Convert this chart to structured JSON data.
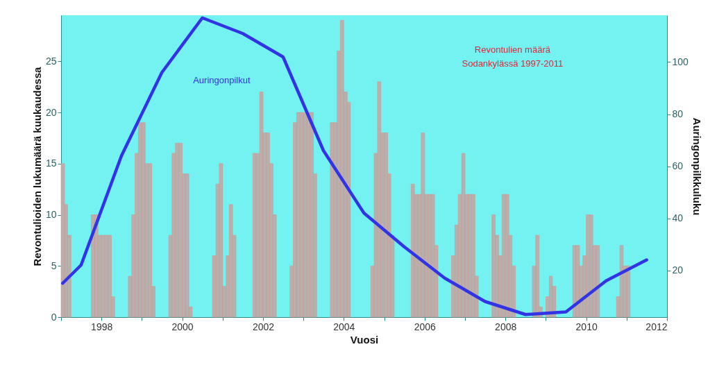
{
  "chart_data": {
    "type": "bar",
    "xlabel": "Vuosi",
    "ylabel": "Revontulioiden lukumäärä kuukaudessa",
    "y2label": "Auringonpilkkuluku",
    "annotations": [
      "Revontulien määrä\nSodankylässä 1997-2011"
    ],
    "xlim": [
      "1997",
      "2012"
    ],
    "xticks": [
      {
        "value": "1997",
        "label": null
      },
      "1998",
      {
        "value": "1999",
        "label": null
      },
      "2000",
      {
        "value": "2001",
        "label": null
      },
      "2002",
      {
        "value": "2003",
        "label": null
      },
      "2004",
      {
        "value": "2005",
        "label": null
      },
      "2006",
      {
        "value": "2007",
        "label": null
      },
      "2008",
      {
        "value": "2009",
        "label": null
      },
      "2010",
      {
        "value": "2011",
        "label": null
      },
      "2012"
    ],
    "ylim": [
      0,
      29.5
    ],
    "yticks": [
      0,
      5,
      10,
      15,
      20,
      25
    ],
    "y2lim": [
      2,
      118
    ],
    "y2ticks": [
      20,
      40,
      60,
      80,
      100
    ],
    "grid": false,
    "series": [
      {
        "color": "#b8b0ae",
        "x": [
          "1997-01",
          "1997-02",
          "1997-03",
          "1997-10",
          "1997-11",
          "1997-12",
          "1998-01",
          "1998-02",
          "1998-03",
          "1998-04",
          "1998-09",
          "1998-10",
          "1998-11",
          "1998-12",
          "1999-01",
          "1999-02",
          "1999-03",
          "1999-04",
          "1999-09",
          "1999-10",
          "1999-11",
          "1999-12",
          "2000-01",
          "2000-02",
          "2000-03",
          "2000-10",
          "2000-11",
          "2000-12",
          "2001-01",
          "2001-02",
          "2001-03",
          "2001-04",
          "2001-10",
          "2001-11",
          "2001-12",
          "2002-01",
          "2002-02",
          "2002-03",
          "2002-04",
          "2002-09",
          "2002-10",
          "2002-11",
          "2002-12",
          "2003-01",
          "2003-02",
          "2003-03",
          "2003-04",
          "2003-09",
          "2003-10",
          "2003-11",
          "2003-12",
          "2004-01",
          "2004-02",
          "2004-09",
          "2004-10",
          "2004-11",
          "2004-12",
          "2005-01",
          "2005-02",
          "2005-03",
          "2005-09",
          "2005-10",
          "2005-11",
          "2005-12",
          "2006-01",
          "2006-02",
          "2006-03",
          "2006-04",
          "2006-09",
          "2006-10",
          "2006-11",
          "2006-12",
          "2007-01",
          "2007-02",
          "2007-03",
          "2007-04",
          "2007-09",
          "2007-10",
          "2007-11",
          "2007-12",
          "2008-01",
          "2008-02",
          "2008-03",
          "2008-09",
          "2008-10",
          "2008-11",
          "2009-01",
          "2009-02",
          "2009-03",
          "2009-09",
          "2009-10",
          "2009-11",
          "2009-12",
          "2010-01",
          "2010-02",
          "2010-03",
          "2010-04",
          "2010-10",
          "2010-11",
          "2010-12",
          "2011-01"
        ],
        "values": [
          15,
          11,
          8,
          10,
          10,
          8,
          8,
          8,
          8,
          2,
          4,
          10,
          16,
          19,
          19,
          15,
          15,
          3,
          8,
          16,
          17,
          17,
          14,
          14,
          1,
          6,
          13,
          15,
          3,
          6,
          11,
          8,
          16,
          16,
          22,
          18,
          18,
          15,
          10,
          5,
          19,
          20,
          20,
          20,
          20,
          20,
          14,
          19,
          19,
          26,
          29,
          22,
          21,
          5,
          16,
          23,
          18,
          18,
          14,
          8,
          13,
          12,
          12,
          18,
          12,
          12,
          12,
          7,
          6,
          9,
          12,
          16,
          12,
          12,
          12,
          4,
          10,
          8,
          6,
          12,
          12,
          8,
          5,
          5,
          8,
          1,
          2,
          4,
          3,
          7,
          7,
          5,
          6,
          10,
          10,
          7,
          7,
          2,
          7,
          5,
          5
        ]
      },
      {
        "type": "line",
        "axis": "y2",
        "name": "Auringonpilkut",
        "color": "#3333e6",
        "x": [
          "1997-01-15",
          "1997-07-01",
          "1998-07-01",
          "1999-07-01",
          "2000-07-01",
          "2001-07-01",
          "2002-07-01",
          "2003-07-01",
          "2004-07-01",
          "2005-07-01",
          "2006-07-01",
          "2007-07-01",
          "2008-07-01",
          "2009-07-01",
          "2010-07-01",
          "2011-07-01"
        ],
        "values": [
          15,
          22,
          64,
          96,
          117,
          111,
          102,
          66,
          42,
          29,
          17,
          8,
          3,
          4,
          16,
          24
        ]
      }
    ]
  }
}
